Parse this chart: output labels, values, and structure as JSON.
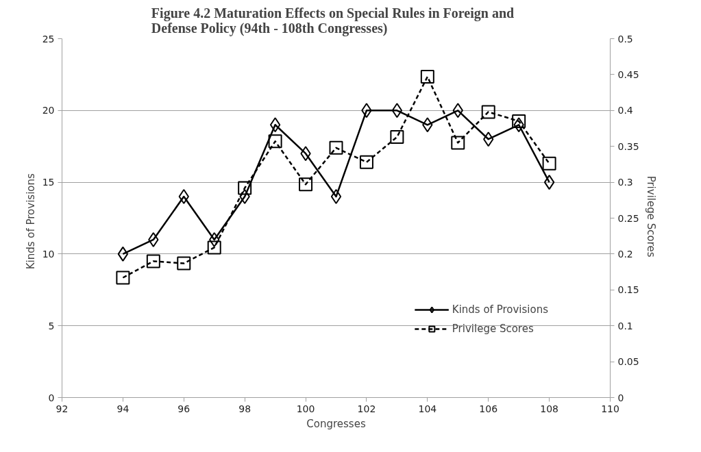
{
  "chart_data": {
    "type": "line",
    "title": "Figure  4.2  Maturation Effects on Special Rules in Foreign and Defense Policy (94th - 108th Congresses)",
    "xlabel": "Congresses",
    "ylabel": "Kinds  of  Provisions",
    "y2label": "Privilege  Scores",
    "x": [
      94,
      95,
      96,
      97,
      98,
      99,
      100,
      101,
      102,
      103,
      104,
      105,
      106,
      107,
      108
    ],
    "series": [
      {
        "name": "Kinds of Provisions",
        "color": "#000000",
        "marker": "diamond",
        "line_style": "solid",
        "values": [
          10,
          11,
          14,
          11,
          14,
          19,
          17,
          14,
          20,
          20,
          19,
          20,
          18,
          19,
          15
        ]
      },
      {
        "name": "Privilege Scores",
        "color": "#000000",
        "marker": "square",
        "line_style": "dashed",
        "axis": "y2",
        "values": [
          0.167,
          0.19,
          0.187,
          0.209,
          0.292,
          0.357,
          0.297,
          0.348,
          0.328,
          0.363,
          0.447,
          0.355,
          0.398,
          0.385,
          0.326
        ]
      }
    ],
    "xlim": [
      92,
      110
    ],
    "xticks": [
      92,
      94,
      96,
      98,
      100,
      102,
      104,
      106,
      108,
      110
    ],
    "ylim": [
      0,
      25
    ],
    "yticks": [
      0,
      5,
      10,
      15,
      20,
      25
    ],
    "y2lim": [
      0,
      0.5
    ],
    "y2ticks": [
      0,
      0.05,
      0.1,
      0.15,
      0.2,
      0.25,
      0.3,
      0.35,
      0.4,
      0.45,
      0.5
    ],
    "grid": "y",
    "legend": "bottom right"
  }
}
